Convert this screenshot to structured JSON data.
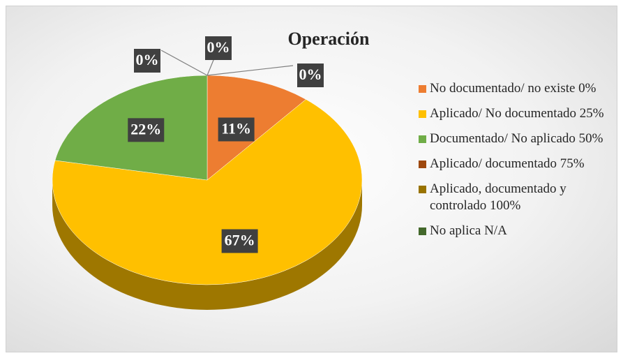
{
  "chart_data": {
    "type": "pie3d",
    "title": "Operación",
    "categories": [
      "No documentado/ no existe 0%",
      "Aplicado/ No documentado 25%",
      "Documentado/ No aplicado 50%",
      "Aplicado/ documentado 75%",
      "Aplicado, documentado y controlado 100%",
      "No aplica N/A"
    ],
    "values": [
      11,
      67,
      22,
      0,
      0,
      0
    ],
    "value_labels": [
      "11%",
      "67%",
      "22%",
      "0%",
      "0%",
      "0%"
    ],
    "colors": [
      "#ed7d31",
      "#ffc000",
      "#70ad47",
      "#9e480e",
      "#997300",
      "#43682b"
    ],
    "legend": "right"
  }
}
